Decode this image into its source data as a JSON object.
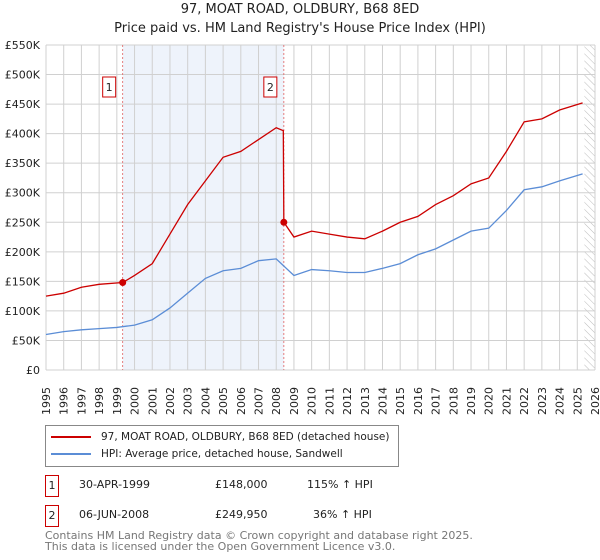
{
  "chart_data": {
    "type": "line",
    "title": "97, MOAT ROAD, OLDBURY, B68 8ED",
    "subtitle": "Price paid vs. HM Land Registry's House Price Index (HPI)",
    "xlim": [
      1995,
      2026
    ],
    "ylim": [
      0,
      550000
    ],
    "x_ticks": [
      "1995",
      "1996",
      "1997",
      "1998",
      "1999",
      "2000",
      "2001",
      "2002",
      "2003",
      "2004",
      "2005",
      "2006",
      "2007",
      "2008",
      "2009",
      "2010",
      "2011",
      "2012",
      "2013",
      "2014",
      "2015",
      "2016",
      "2017",
      "2018",
      "2019",
      "2020",
      "2021",
      "2022",
      "2023",
      "2024",
      "2025",
      "2026"
    ],
    "y_ticks": [
      {
        "v": 0,
        "label": "£0"
      },
      {
        "v": 50000,
        "label": "£50K"
      },
      {
        "v": 100000,
        "label": "£100K"
      },
      {
        "v": 150000,
        "label": "£150K"
      },
      {
        "v": 200000,
        "label": "£200K"
      },
      {
        "v": 250000,
        "label": "£250K"
      },
      {
        "v": 300000,
        "label": "£300K"
      },
      {
        "v": 350000,
        "label": "£350K"
      },
      {
        "v": 400000,
        "label": "£400K"
      },
      {
        "v": 450000,
        "label": "£450K"
      },
      {
        "v": 500000,
        "label": "£500K"
      },
      {
        "v": 550000,
        "label": "£550K"
      }
    ],
    "grid": true,
    "series": [
      {
        "name": "97, MOAT ROAD, OLDBURY, B68 8ED (detached house)",
        "color": "#cc0000",
        "points": [
          [
            1995,
            125000
          ],
          [
            1996,
            130000
          ],
          [
            1997,
            140000
          ],
          [
            1998,
            145000
          ],
          [
            1999.33,
            148000
          ],
          [
            2000,
            160000
          ],
          [
            2001,
            180000
          ],
          [
            2002,
            230000
          ],
          [
            2003,
            280000
          ],
          [
            2004,
            320000
          ],
          [
            2005,
            360000
          ],
          [
            2006,
            370000
          ],
          [
            2007,
            390000
          ],
          [
            2008,
            410000
          ],
          [
            2008.4,
            405000
          ],
          [
            2008.43,
            249950
          ],
          [
            2009,
            225000
          ],
          [
            2010,
            235000
          ],
          [
            2011,
            230000
          ],
          [
            2012,
            225000
          ],
          [
            2013,
            222000
          ],
          [
            2014,
            235000
          ],
          [
            2015,
            250000
          ],
          [
            2016,
            260000
          ],
          [
            2017,
            280000
          ],
          [
            2018,
            295000
          ],
          [
            2019,
            315000
          ],
          [
            2020,
            325000
          ],
          [
            2021,
            370000
          ],
          [
            2022,
            420000
          ],
          [
            2023,
            425000
          ],
          [
            2024,
            440000
          ],
          [
            2025.3,
            452000
          ]
        ]
      },
      {
        "name": "HPI: Average price, detached house, Sandwell",
        "color": "#5b8dd6",
        "points": [
          [
            1995,
            60000
          ],
          [
            1996,
            65000
          ],
          [
            1997,
            68000
          ],
          [
            1998,
            70000
          ],
          [
            1999,
            72000
          ],
          [
            2000,
            76000
          ],
          [
            2001,
            85000
          ],
          [
            2002,
            105000
          ],
          [
            2003,
            130000
          ],
          [
            2004,
            155000
          ],
          [
            2005,
            168000
          ],
          [
            2006,
            172000
          ],
          [
            2007,
            185000
          ],
          [
            2008,
            188000
          ],
          [
            2009,
            160000
          ],
          [
            2010,
            170000
          ],
          [
            2011,
            168000
          ],
          [
            2012,
            165000
          ],
          [
            2013,
            165000
          ],
          [
            2014,
            172000
          ],
          [
            2015,
            180000
          ],
          [
            2016,
            195000
          ],
          [
            2017,
            205000
          ],
          [
            2018,
            220000
          ],
          [
            2019,
            235000
          ],
          [
            2020,
            240000
          ],
          [
            2021,
            270000
          ],
          [
            2022,
            305000
          ],
          [
            2023,
            310000
          ],
          [
            2024,
            320000
          ],
          [
            2025.3,
            332000
          ]
        ]
      }
    ],
    "annotations": [
      {
        "label": "1",
        "x": 1999.33,
        "y": 148000
      },
      {
        "label": "2",
        "x": 2008.43,
        "y": 249950
      }
    ],
    "shaded_range": [
      1999.33,
      2008.43
    ],
    "hatched_from": 2025.4,
    "legend": "below"
  },
  "sales": [
    {
      "num": "1",
      "date": "30-APR-1999",
      "price": "£148,000",
      "hpi": "115% ↑ HPI"
    },
    {
      "num": "2",
      "date": "06-JUN-2008",
      "price": "£249,950",
      "hpi": "36% ↑ HPI"
    }
  ],
  "footer": [
    "Contains HM Land Registry data © Crown copyright and database right 2025.",
    "This data is licensed under the Open Government Licence v3.0."
  ]
}
